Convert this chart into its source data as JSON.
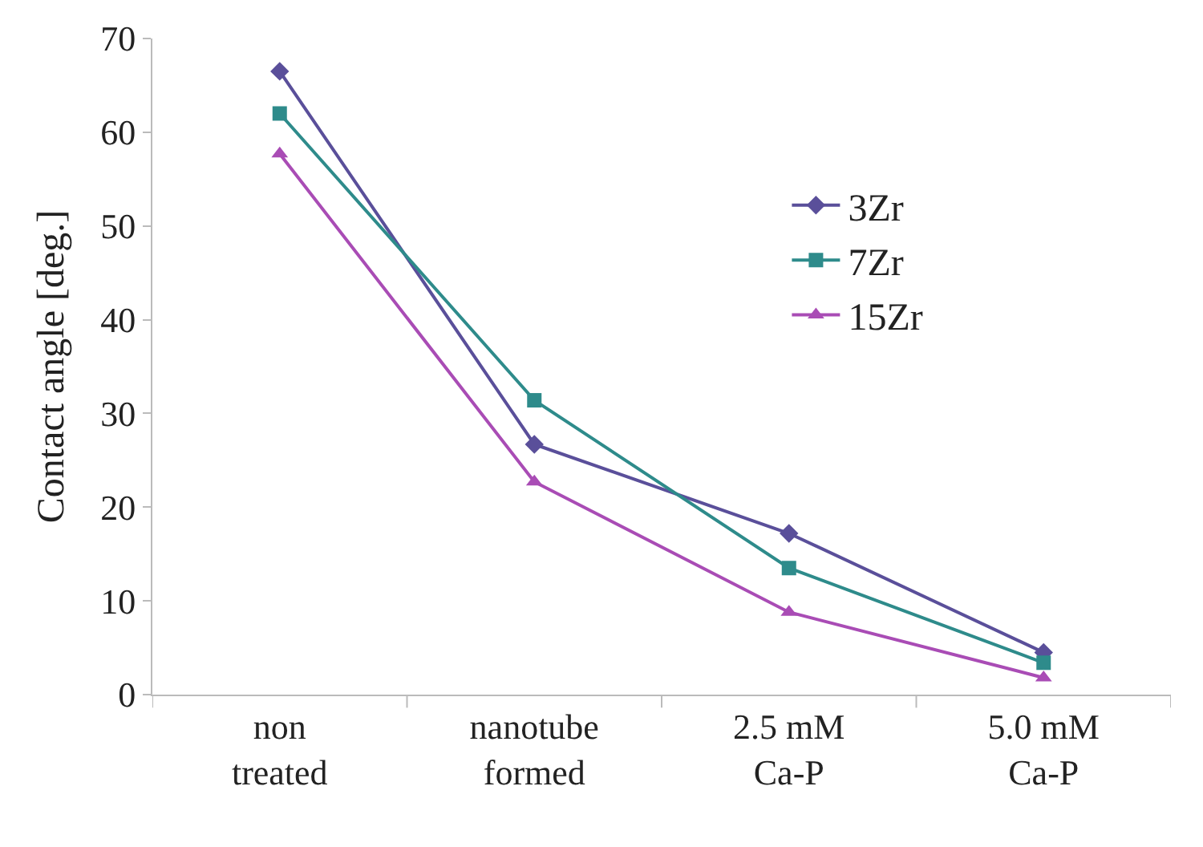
{
  "chart_data": {
    "type": "line",
    "ylabel": "Contact angle [deg.]",
    "categories": [
      "non\ntreated",
      "nanotube\nformed",
      "2.5 mM\nCa-P",
      "5.0 mM\nCa-P"
    ],
    "series": [
      {
        "name": "3Zr",
        "color": "#5a4f9a",
        "marker": "diamond",
        "values": [
          66.5,
          26.7,
          17.2,
          4.5
        ]
      },
      {
        "name": "7Zr",
        "color": "#2e8b8b",
        "marker": "square",
        "values": [
          62,
          31.4,
          13.5,
          3.4
        ]
      },
      {
        "name": "15Zr",
        "color": "#a94cb5",
        "marker": "triangle",
        "values": [
          57.7,
          22.7,
          8.8,
          1.8
        ]
      }
    ],
    "ylim": [
      0,
      70
    ],
    "yticks": [
      0,
      10,
      20,
      30,
      40,
      50,
      60,
      70
    ],
    "legend": "top right"
  }
}
